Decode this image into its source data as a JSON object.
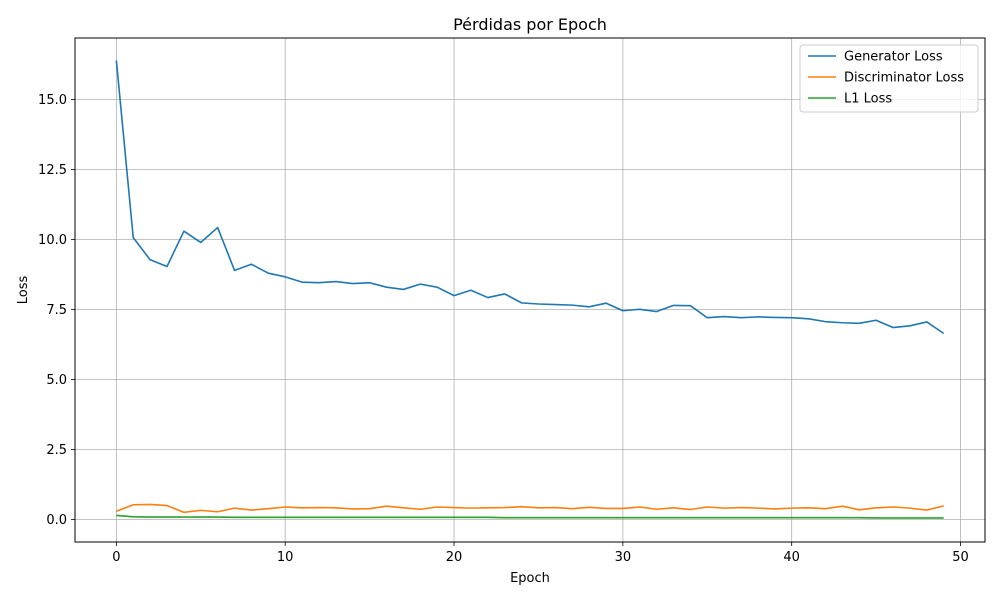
{
  "chart_data": {
    "type": "line",
    "title": "Pérdidas por Epoch",
    "xlabel": "Epoch",
    "ylabel": "Loss",
    "xlim": [
      -2.45,
      51.45
    ],
    "ylim": [
      -0.8,
      17.2
    ],
    "xticks": [
      0,
      10,
      20,
      30,
      40,
      50
    ],
    "xtick_labels": [
      "0",
      "10",
      "20",
      "30",
      "40",
      "50"
    ],
    "yticks": [
      0.0,
      2.5,
      5.0,
      7.5,
      10.0,
      12.5,
      15.0
    ],
    "ytick_labels": [
      "0.0",
      "2.5",
      "5.0",
      "7.5",
      "10.0",
      "12.5",
      "15.0"
    ],
    "grid": true,
    "legend_position": "top-right",
    "x": [
      0,
      1,
      2,
      3,
      4,
      5,
      6,
      7,
      8,
      9,
      10,
      11,
      12,
      13,
      14,
      15,
      16,
      17,
      18,
      19,
      20,
      21,
      22,
      23,
      24,
      25,
      26,
      27,
      28,
      29,
      30,
      31,
      32,
      33,
      34,
      35,
      36,
      37,
      38,
      39,
      40,
      41,
      42,
      43,
      44,
      45,
      46,
      47,
      48,
      49
    ],
    "series": [
      {
        "name": "Generator Loss",
        "color": "#1f77b4",
        "values": [
          16.4,
          10.07,
          9.28,
          9.04,
          10.3,
          9.9,
          10.43,
          8.9,
          9.12,
          8.8,
          8.67,
          8.48,
          8.46,
          8.5,
          8.43,
          8.46,
          8.3,
          8.22,
          8.41,
          8.3,
          8.0,
          8.19,
          7.93,
          8.06,
          7.74,
          7.7,
          7.68,
          7.66,
          7.6,
          7.73,
          7.46,
          7.51,
          7.43,
          7.65,
          7.64,
          7.21,
          7.25,
          7.21,
          7.24,
          7.22,
          7.21,
          7.17,
          7.07,
          7.03,
          7.01,
          7.12,
          6.86,
          6.92,
          7.06,
          6.65
        ]
      },
      {
        "name": "Discriminator Loss",
        "color": "#ff7f0e",
        "values": [
          0.3,
          0.53,
          0.54,
          0.5,
          0.26,
          0.33,
          0.28,
          0.41,
          0.34,
          0.39,
          0.45,
          0.42,
          0.43,
          0.42,
          0.38,
          0.39,
          0.48,
          0.42,
          0.37,
          0.45,
          0.43,
          0.41,
          0.42,
          0.43,
          0.46,
          0.42,
          0.43,
          0.39,
          0.44,
          0.4,
          0.4,
          0.45,
          0.37,
          0.42,
          0.36,
          0.45,
          0.41,
          0.43,
          0.41,
          0.38,
          0.41,
          0.42,
          0.39,
          0.48,
          0.35,
          0.42,
          0.45,
          0.41,
          0.34,
          0.49
        ]
      },
      {
        "name": "L1 Loss",
        "color": "#2ca02c",
        "values": [
          0.15,
          0.1,
          0.09,
          0.09,
          0.09,
          0.09,
          0.09,
          0.08,
          0.08,
          0.08,
          0.08,
          0.08,
          0.08,
          0.08,
          0.08,
          0.08,
          0.08,
          0.08,
          0.08,
          0.08,
          0.08,
          0.08,
          0.08,
          0.07,
          0.07,
          0.07,
          0.07,
          0.07,
          0.07,
          0.07,
          0.07,
          0.07,
          0.07,
          0.07,
          0.07,
          0.07,
          0.07,
          0.07,
          0.07,
          0.07,
          0.07,
          0.07,
          0.07,
          0.07,
          0.07,
          0.06,
          0.06,
          0.06,
          0.06,
          0.06
        ]
      }
    ]
  }
}
